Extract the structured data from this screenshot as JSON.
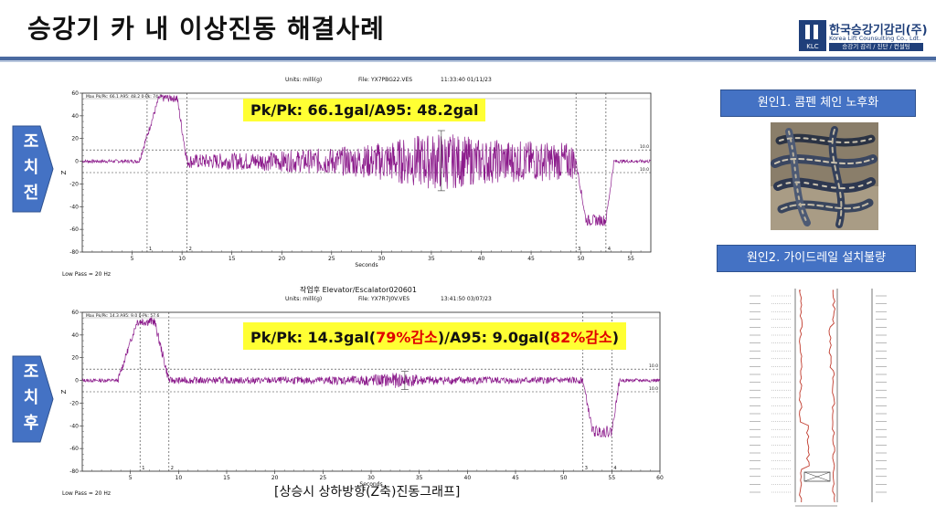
{
  "slide": {
    "title": "승강기 카 내 이상진동 해결사례",
    "caption": "[상승시 상하방향(Z축)진동그래프]"
  },
  "logo": {
    "name_ko": "한국승강기감리(주)",
    "name_en": "Korea Lift Counsulting Co., Ldt.",
    "tagline": "승강기 감리 / 진단 / 컨설팅",
    "mark": "KLC"
  },
  "colors": {
    "accent": "#4472c4",
    "rule": "#4a6aa0",
    "signal": "#8b1a8b",
    "highlight": "#ffff33",
    "reduction": "#e00000"
  },
  "side_labels": {
    "before": [
      "조",
      "치",
      "전"
    ],
    "after": [
      "조",
      "치",
      "후"
    ]
  },
  "causes": {
    "cause1": "원인1. 콤펜 체인 노후화",
    "cause2": "원인2. 가이드레일 설치불량"
  },
  "chart_data": [
    {
      "type": "line",
      "id": "before",
      "header_title": "",
      "units_line": "Units: milli(g)",
      "file_line": "File: YX7PBG22.VES",
      "time_line": "11:33:40 01/11/23",
      "stats_line": "Max Pk/Pk: 66.1 A95: 48.2 0-Pk: 74.7",
      "lowpass": "Low Pass = 20 Hz",
      "ylabel": "Z",
      "xlabel": "Seconds",
      "xlim": [
        0,
        57
      ],
      "ylim": [
        -80,
        60
      ],
      "xticks": [
        5,
        10,
        15,
        20,
        25,
        30,
        35,
        40,
        45,
        50,
        55
      ],
      "yticks": [
        60,
        40,
        20,
        0,
        -20,
        -40,
        -60,
        -80
      ],
      "ref_lines": [
        10,
        -10
      ],
      "ref_label": "10.0",
      "markers": [
        {
          "x": 6.5,
          "label": "1"
        },
        {
          "x": 10.5,
          "label": "2"
        },
        {
          "x": 49.5,
          "label": "3"
        },
        {
          "x": 52.5,
          "label": "4"
        }
      ],
      "summary": {
        "pk_pk": "Pk/Pk: 66.1gal",
        "sep": "/",
        "a95": "A95: 48.2gal"
      },
      "profile": {
        "accel_start": 6.5,
        "accel_end": 9.5,
        "accel_level": 56,
        "decel_start": 49.5,
        "decel_end": 52.5,
        "decel_level": -52,
        "noise_start": 10.5,
        "noise_end": 49.5,
        "noise_envelope": [
          [
            10.5,
            6
          ],
          [
            20,
            9
          ],
          [
            28,
            14
          ],
          [
            33,
            22
          ],
          [
            36,
            26
          ],
          [
            40,
            20
          ],
          [
            45,
            18
          ],
          [
            49.5,
            16
          ]
        ]
      }
    },
    {
      "type": "line",
      "id": "after",
      "header_title": "작업후    Elevator/Escalator020601",
      "units_line": "Units: milli(g)",
      "file_line": "File: YX7R7J0V.VES",
      "time_line": "13:41:50 03/07/23",
      "stats_line": "Max Pk/Pk: 14.3 A95: 9.0 0-Pk: 57.6",
      "lowpass": "Low Pass = 20 Hz",
      "ylabel": "Z",
      "xlabel": "Seconds",
      "xlim": [
        0,
        60
      ],
      "ylim": [
        -80,
        60
      ],
      "xticks": [
        5,
        10,
        15,
        20,
        25,
        30,
        35,
        40,
        45,
        50,
        55,
        60
      ],
      "yticks": [
        60,
        40,
        20,
        0,
        -20,
        -40,
        -60,
        -80
      ],
      "ref_lines": [
        10,
        -10
      ],
      "ref_label": "10.0",
      "markers": [
        {
          "x": 6,
          "label": "1"
        },
        {
          "x": 9,
          "label": "2"
        },
        {
          "x": 52,
          "label": "3"
        },
        {
          "x": 55,
          "label": "4"
        }
      ],
      "summary": {
        "pk_pk": "Pk/Pk: 14.3gal(",
        "red1": "79%감소",
        "mid": ")/A95: 9.0gal(",
        "red2": "82%감소",
        "end": ")"
      },
      "profile": {
        "accel_start": 4.5,
        "accel_end": 7.5,
        "accel_level": 52,
        "decel_start": 52,
        "decel_end": 55,
        "decel_level": -45,
        "noise_start": 9,
        "noise_end": 52,
        "noise_envelope": [
          [
            9,
            3
          ],
          [
            20,
            3
          ],
          [
            28,
            4
          ],
          [
            33,
            7
          ],
          [
            36,
            4
          ],
          [
            45,
            3
          ],
          [
            52,
            3
          ]
        ]
      }
    }
  ]
}
